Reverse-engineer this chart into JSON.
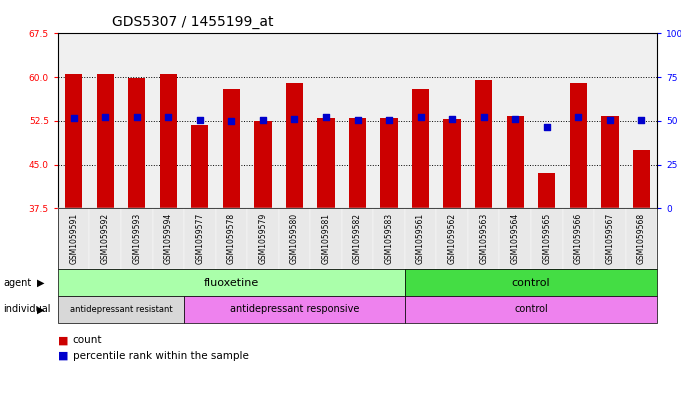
{
  "title": "GDS5307 / 1455199_at",
  "samples": [
    "GSM1059591",
    "GSM1059592",
    "GSM1059593",
    "GSM1059594",
    "GSM1059577",
    "GSM1059578",
    "GSM1059579",
    "GSM1059580",
    "GSM1059581",
    "GSM1059582",
    "GSM1059583",
    "GSM1059561",
    "GSM1059562",
    "GSM1059563",
    "GSM1059564",
    "GSM1059565",
    "GSM1059566",
    "GSM1059567",
    "GSM1059568"
  ],
  "bar_heights": [
    60.5,
    60.5,
    59.8,
    60.6,
    51.8,
    58.0,
    52.5,
    59.0,
    53.0,
    53.0,
    53.0,
    58.0,
    52.8,
    59.5,
    53.3,
    43.5,
    59.0,
    53.3,
    47.5
  ],
  "blue_dots": [
    53.0,
    53.2,
    53.1,
    53.2,
    52.7,
    52.5,
    52.6,
    52.8,
    53.1,
    52.7,
    52.7,
    53.2,
    52.8,
    53.2,
    52.9,
    51.5,
    53.1,
    52.7,
    52.6
  ],
  "ylim_left": [
    37.5,
    67.5
  ],
  "yticks_left": [
    37.5,
    45.0,
    52.5,
    60.0,
    67.5
  ],
  "yticks_right_labels": [
    "0",
    "25",
    "50",
    "75",
    "100%"
  ],
  "yticks_right_values": [
    37.5,
    45.0,
    52.5,
    60.0,
    67.5
  ],
  "bar_color": "#cc0000",
  "dot_color": "#0000cc",
  "background_plot": "#f0f0f0",
  "agent_fluoxetine_color": "#aaffaa",
  "agent_control_color": "#44dd44",
  "ind_resistant_color": "#d8d8d8",
  "ind_responsive_color": "#ee82ee",
  "ind_control_color": "#ee82ee",
  "legend_count_color": "#cc0000",
  "legend_dot_color": "#0000cc",
  "title_fontsize": 10,
  "tick_fontsize": 6.5,
  "bar_width": 0.55
}
